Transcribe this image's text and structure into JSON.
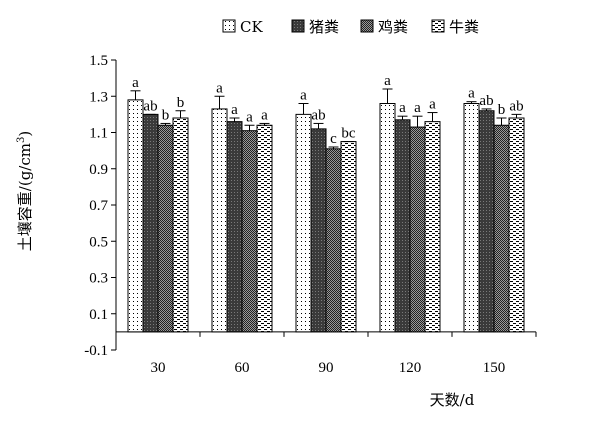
{
  "chart_data": {
    "type": "bar",
    "xlabel": "天数/d",
    "ylabel": "土壤容重/(g/cm³)",
    "ylabel_parts": {
      "prefix": "土壤容重/(g/cm",
      "sup": "3",
      "suffix": ")"
    },
    "categories": [
      "30",
      "60",
      "90",
      "120",
      "150"
    ],
    "ylim": [
      -0.1,
      1.5
    ],
    "yticks": [
      "-0.1",
      "0.1",
      "0.3",
      "0.5",
      "0.7",
      "0.9",
      "1.1",
      "1.3",
      "1.5"
    ],
    "grid": false,
    "legend_position": "top",
    "series": [
      {
        "name": "CK",
        "pattern": "dots-sparse",
        "values": [
          1.28,
          1.23,
          1.2,
          1.26,
          1.26
        ],
        "errors": [
          0.05,
          0.07,
          0.06,
          0.08,
          0.01
        ],
        "labels": [
          "a",
          "a",
          "a",
          "a",
          "a"
        ]
      },
      {
        "name": "猪粪",
        "pattern": "dark",
        "values": [
          1.2,
          1.16,
          1.12,
          1.17,
          1.22
        ],
        "errors": [
          0.0,
          0.02,
          0.03,
          0.02,
          0.01
        ],
        "labels": [
          "ab",
          "a",
          "ab",
          "a",
          "ab"
        ]
      },
      {
        "name": "鸡粪",
        "pattern": "dots-dense",
        "values": [
          1.14,
          1.11,
          1.01,
          1.13,
          1.14
        ],
        "errors": [
          0.01,
          0.03,
          0.01,
          0.06,
          0.04
        ],
        "labels": [
          "b",
          "a",
          "c",
          "a",
          "b"
        ]
      },
      {
        "name": "牛粪",
        "pattern": "dashes",
        "values": [
          1.18,
          1.14,
          1.05,
          1.16,
          1.18
        ],
        "errors": [
          0.04,
          0.01,
          0.0,
          0.05,
          0.02
        ],
        "labels": [
          "b",
          "a",
          "bc",
          "a",
          "ab"
        ]
      }
    ]
  }
}
